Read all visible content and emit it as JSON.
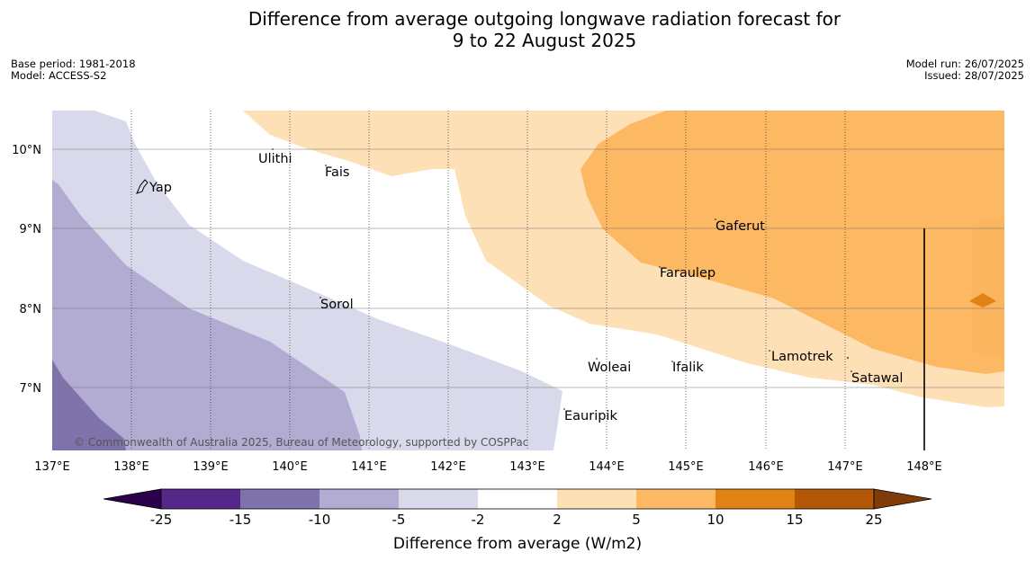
{
  "title_line1": "Difference from average outgoing longwave radiation forecast for",
  "title_line2": "9 to 22 August 2025",
  "base_period": "Base period: 1981-2018",
  "model": "Model: ACCESS-S2",
  "model_run": "Model run: 26/07/2025",
  "issued": "Issued: 28/07/2025",
  "copyright": "© Commonwealth of Australia 2025, Bureau of Meteorology, supported by COSPPac",
  "lat_ticks": [
    "10°N",
    "9°N",
    "8°N",
    "7°N"
  ],
  "lon_ticks": [
    "137°E",
    "138°E",
    "139°E",
    "140°E",
    "141°E",
    "142°E",
    "143°E",
    "144°E",
    "145°E",
    "146°E",
    "147°E",
    "148°E"
  ],
  "places": {
    "yap": "Yap",
    "ulithi": "Ulithi",
    "fais": "Fais",
    "gaferut": "Gaferut",
    "faraulep": "Faraulep",
    "sorol": "Sorol",
    "woleai": "Woleai",
    "ifalik": "Ifalik",
    "lamotrek": "Lamotrek",
    "satawal": "Satawal",
    "eauripik": "Eauripik"
  },
  "colorbar": {
    "label": "Difference from average (W/m2)",
    "ticks": [
      "-25",
      "-15",
      "-10",
      "-5",
      "-2",
      "2",
      "5",
      "10",
      "15",
      "25"
    ],
    "colors": [
      "#2d004b",
      "#542788",
      "#8073ac",
      "#b2abd2",
      "#d8daeb",
      "#ffffff",
      "#fee0b6",
      "#fdb863",
      "#e08214",
      "#b35806",
      "#7f3b08"
    ]
  }
}
